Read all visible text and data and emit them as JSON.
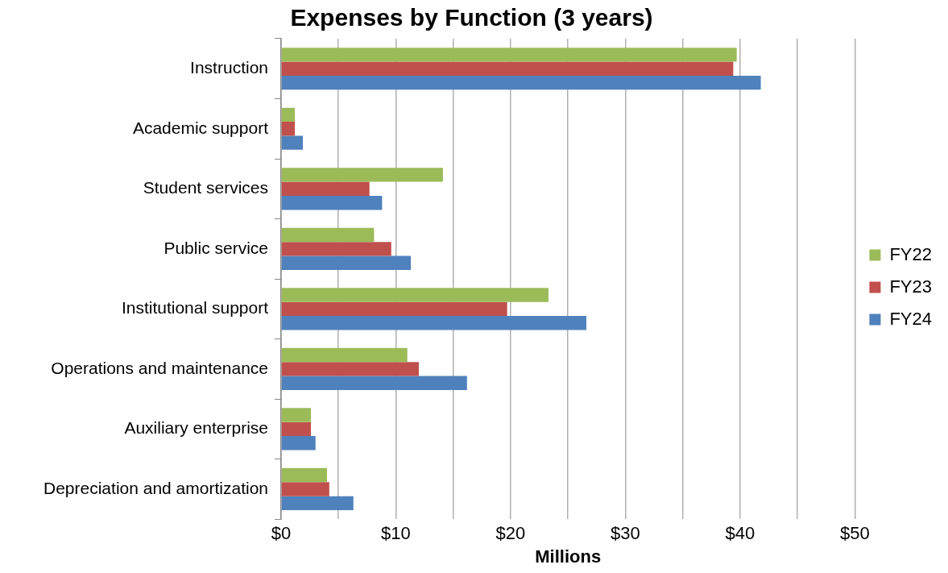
{
  "chart_data": {
    "type": "bar",
    "orientation": "horizontal",
    "title": "Expenses by Function (3 years)",
    "xlabel": "Millions",
    "categories": [
      "Instruction",
      "Academic support",
      "Student services",
      "Public service",
      "Institutional support",
      "Operations and maintenance",
      "Auxiliary enterprise",
      "Depreciation and amortization"
    ],
    "series": [
      {
        "name": "FY22",
        "color": "#9bbb59",
        "values": [
          39.7,
          1.2,
          14.1,
          8.1,
          23.3,
          11.0,
          2.6,
          4.0
        ]
      },
      {
        "name": "FY23",
        "color": "#c0504d",
        "values": [
          39.4,
          1.2,
          7.7,
          9.6,
          19.7,
          12.0,
          2.6,
          4.2
        ]
      },
      {
        "name": "FY24",
        "color": "#4f81bd",
        "values": [
          41.8,
          1.9,
          8.8,
          11.3,
          26.6,
          16.2,
          3.0,
          6.3
        ]
      }
    ],
    "xlim": [
      0,
      50
    ],
    "xticks": [
      {
        "value": 0,
        "label": "$0"
      },
      {
        "value": 5,
        "label": null
      },
      {
        "value": 10,
        "label": "$10"
      },
      {
        "value": 15,
        "label": null
      },
      {
        "value": 20,
        "label": "$20"
      },
      {
        "value": 25,
        "label": null
      },
      {
        "value": 30,
        "label": "$30"
      },
      {
        "value": 35,
        "label": null
      },
      {
        "value": 40,
        "label": "$40"
      },
      {
        "value": 45,
        "label": null
      },
      {
        "value": 50,
        "label": "$50"
      }
    ],
    "grid": "x",
    "legend": "right"
  }
}
